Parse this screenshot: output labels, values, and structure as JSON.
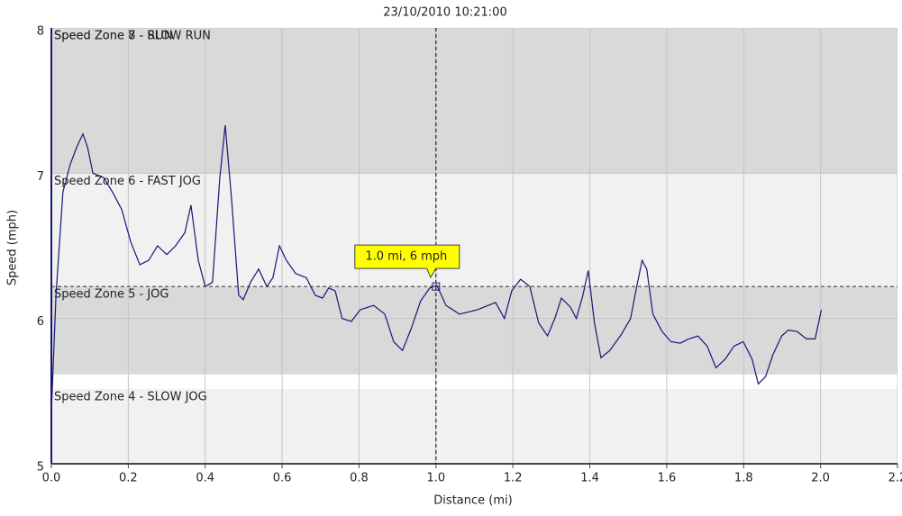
{
  "chart_data": {
    "type": "line",
    "title": "23/10/2010 10:21:00",
    "x_label": "Distance (mi)",
    "y_label": "Speed (mph)",
    "xlim": [
      0,
      2.2
    ],
    "ylim": [
      5,
      8
    ],
    "xticks": [
      {
        "value": 0,
        "label": "0.0"
      },
      0.2,
      0.4,
      0.6,
      0.8,
      {
        "value": 1,
        "label": "1.0"
      },
      1.2,
      1.4,
      1.6,
      1.8,
      {
        "value": 2,
        "label": "2.0"
      },
      2.2
    ],
    "yticks": [
      5,
      6,
      7,
      8
    ],
    "grid": true,
    "zones": [
      {
        "label": "Speed Zone 4 - SLOW JOG",
        "from": 5,
        "to": 5.515,
        "color": "#f1f1f1"
      },
      {
        "label": "Speed Zone 5 - JOG",
        "from": 5.615,
        "to": 6.22,
        "color": "#d9d9d9"
      },
      {
        "label": "Speed Zone 6 - FAST JOG",
        "from": 6.22,
        "to": 7,
        "color": "#f1f1f1"
      },
      {
        "label": "Speed Zone 7 - SLOW RUN",
        "from": 7,
        "to": 8,
        "color": "#d9d9d9"
      },
      {
        "label": "Speed Zone 8 - RUN",
        "from": 8,
        "to": 9,
        "color": "#d9d9d9"
      }
    ],
    "crosshair": {
      "x": 1.0,
      "y": 6.22,
      "label": "1.0 mi, 6 mph"
    },
    "series": [
      {
        "name": "Speed",
        "color": "#16167a",
        "x": [
          0,
          0.012,
          0.03,
          0.049,
          0.066,
          0.082,
          0.094,
          0.108,
          0.136,
          0.159,
          0.183,
          0.206,
          0.23,
          0.253,
          0.276,
          0.3,
          0.323,
          0.347,
          0.363,
          0.382,
          0.4,
          0.419,
          0.438,
          0.452,
          0.468,
          0.487,
          0.499,
          0.518,
          0.539,
          0.56,
          0.576,
          0.593,
          0.611,
          0.635,
          0.663,
          0.686,
          0.705,
          0.721,
          0.738,
          0.756,
          0.78,
          0.803,
          0.838,
          0.867,
          0.89,
          0.913,
          0.937,
          0.96,
          0.984,
          1.002,
          1.026,
          1.061,
          1.108,
          1.155,
          1.178,
          1.197,
          1.22,
          1.244,
          1.267,
          1.29,
          1.309,
          1.326,
          1.349,
          1.365,
          1.382,
          1.396,
          1.412,
          1.429,
          1.452,
          1.482,
          1.506,
          1.522,
          1.536,
          1.548,
          1.564,
          1.588,
          1.611,
          1.635,
          1.658,
          1.681,
          1.705,
          1.728,
          1.752,
          1.775,
          1.799,
          1.822,
          1.838,
          1.857,
          1.876,
          1.899,
          1.916,
          1.939,
          1.963,
          1.986,
          2.002
        ],
        "values": [
          5.35,
          6.16,
          6.87,
          7.06,
          7.18,
          7.27,
          7.18,
          7.0,
          6.97,
          6.87,
          6.75,
          6.53,
          6.37,
          6.4,
          6.5,
          6.44,
          6.5,
          6.59,
          6.78,
          6.4,
          6.22,
          6.25,
          6.97,
          7.33,
          6.84,
          6.16,
          6.13,
          6.25,
          6.34,
          6.22,
          6.28,
          6.5,
          6.4,
          6.31,
          6.28,
          6.16,
          6.14,
          6.21,
          6.19,
          6.0,
          5.98,
          6.06,
          6.09,
          6.03,
          5.84,
          5.78,
          5.94,
          6.12,
          6.21,
          6.23,
          6.09,
          6.03,
          6.06,
          6.11,
          6.0,
          6.19,
          6.27,
          6.22,
          5.97,
          5.88,
          6.0,
          6.14,
          6.08,
          6.0,
          6.16,
          6.33,
          5.97,
          5.73,
          5.78,
          5.89,
          6.0,
          6.22,
          6.4,
          6.34,
          6.03,
          5.91,
          5.84,
          5.83,
          5.86,
          5.88,
          5.81,
          5.66,
          5.72,
          5.81,
          5.84,
          5.72,
          5.55,
          5.6,
          5.75,
          5.88,
          5.92,
          5.91,
          5.86,
          5.86,
          6.06
        ]
      }
    ]
  }
}
